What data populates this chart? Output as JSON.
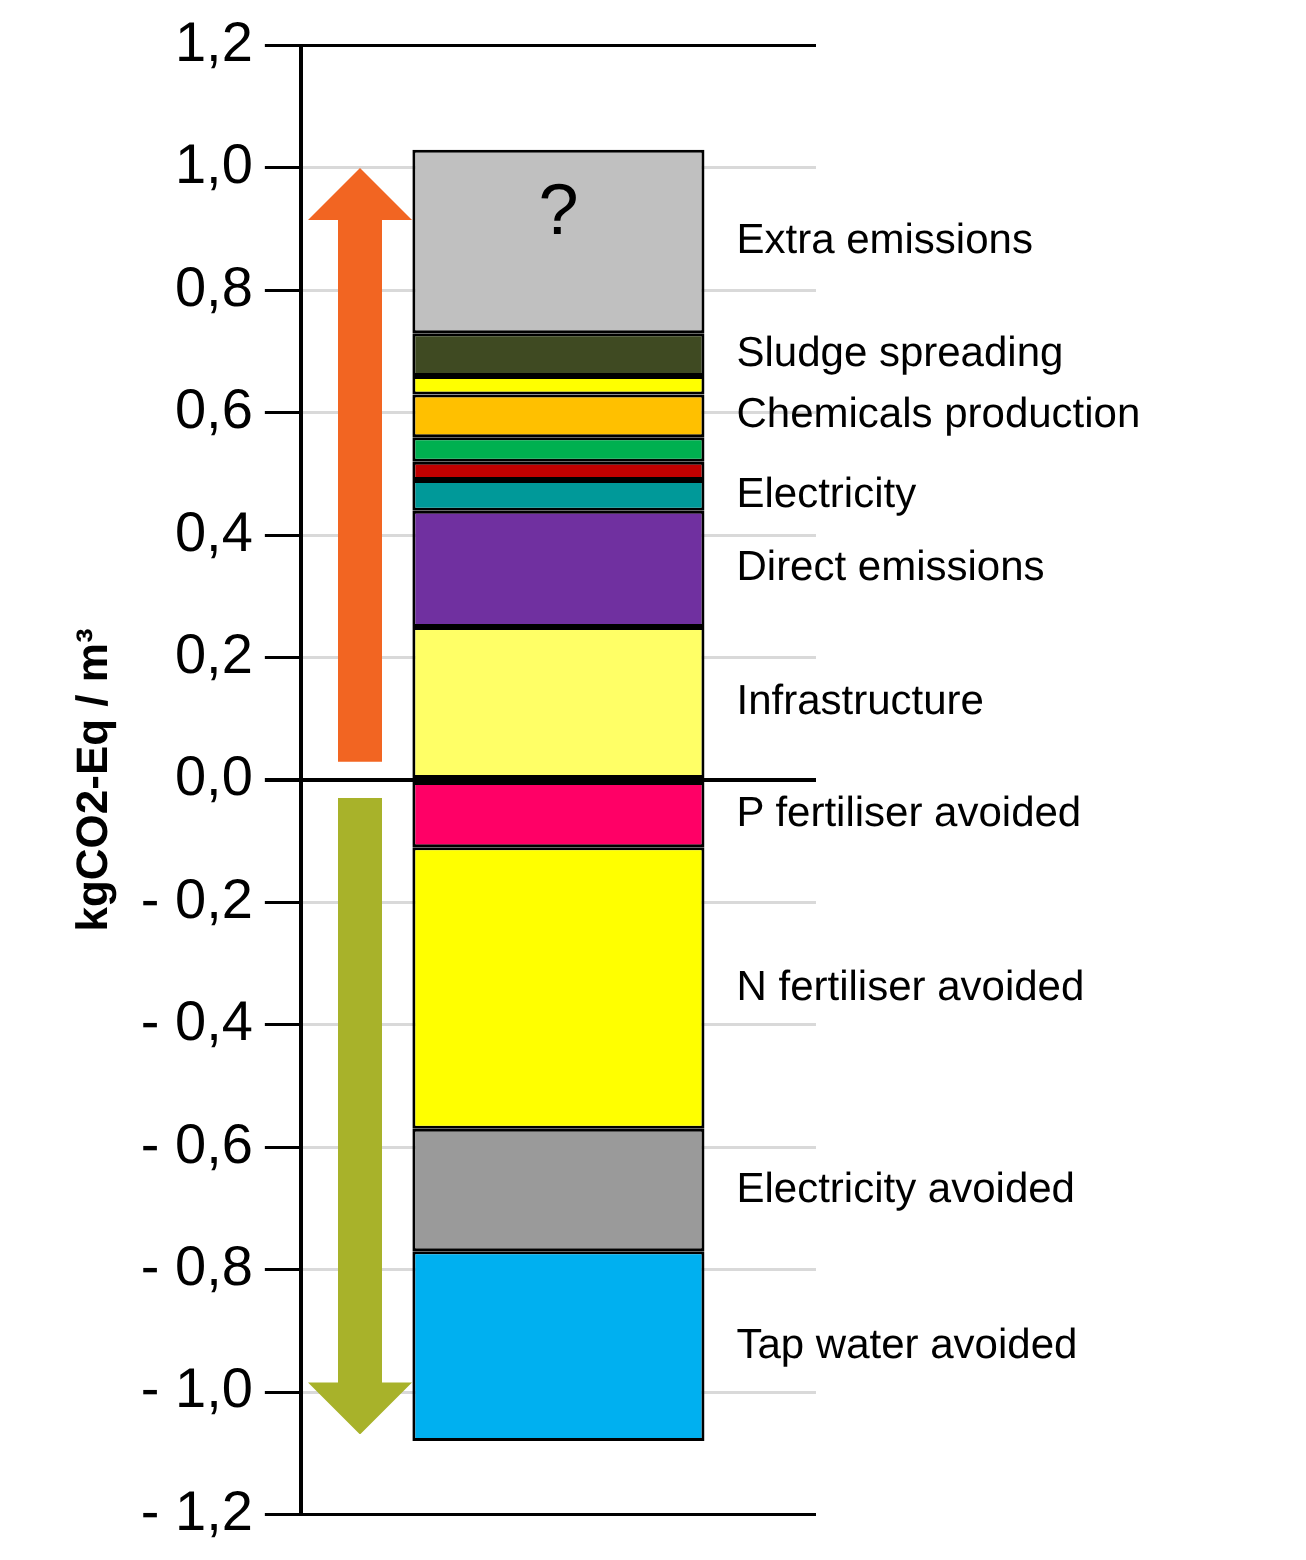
{
  "chart_data": {
    "type": "bar",
    "ylabel": "kgCO2-Eq / m³",
    "categories": [
      null
    ],
    "stacked": true,
    "grid": "y",
    "ylim": [
      -1.2,
      1.2
    ],
    "yticks": [
      {
        "value": -1.2,
        "label": "- 1,2"
      },
      {
        "value": -1.0,
        "label": "- 1,0"
      },
      {
        "value": -0.8,
        "label": "- 0,8"
      },
      {
        "value": -0.6,
        "label": "- 0,6"
      },
      {
        "value": -0.4,
        "label": "- 0,4"
      },
      {
        "value": -0.2,
        "label": "- 0,2"
      },
      {
        "value": 0,
        "label": "0,0"
      },
      {
        "value": 0.2,
        "label": "0,2"
      },
      {
        "value": 0.4,
        "label": "0,4"
      },
      {
        "value": 0.6,
        "label": "0,6"
      },
      {
        "value": 0.8,
        "label": "0,8"
      },
      {
        "value": 1.0,
        "label": "1,0"
      },
      {
        "value": 1.2,
        "label": "1,2"
      }
    ],
    "annotations": [
      "?"
    ],
    "series": [
      {
        "name": "Infrastructure",
        "color": "#ffff66",
        "values": [
          0.25
        ]
      },
      {
        "name": "Direct emissions",
        "color": "#7030a0",
        "values": [
          0.19
        ]
      },
      {
        "name": "Electricity",
        "color": "#009999",
        "values": [
          0.05
        ]
      },
      {
        "color": "#c00000",
        "values": [
          0.03
        ]
      },
      {
        "color": "#00b050",
        "values": [
          0.04
        ]
      },
      {
        "name": "Chemicals production",
        "color": "#ffc000",
        "values": [
          0.07
        ]
      },
      {
        "color": "#ffff00",
        "values": [
          0.03
        ]
      },
      {
        "name": "Sludge spreading",
        "color": "#3f4a22",
        "values": [
          0.07
        ]
      },
      {
        "name": "Extra emissions",
        "color": "#c0c0c0",
        "values": [
          0.3
        ]
      },
      {
        "name": "P fertiliser avoided",
        "color": "#ff0066",
        "values": [
          -0.11
        ]
      },
      {
        "name": "N fertiliser avoided",
        "color": "#ffff00",
        "values": [
          -0.46
        ]
      },
      {
        "name": "Electricity avoided",
        "color": "#9a9a9a",
        "values": [
          -0.2
        ]
      },
      {
        "name": "Tap water avoided",
        "color": "#00b0f0",
        "values": [
          -0.31
        ]
      }
    ]
  }
}
